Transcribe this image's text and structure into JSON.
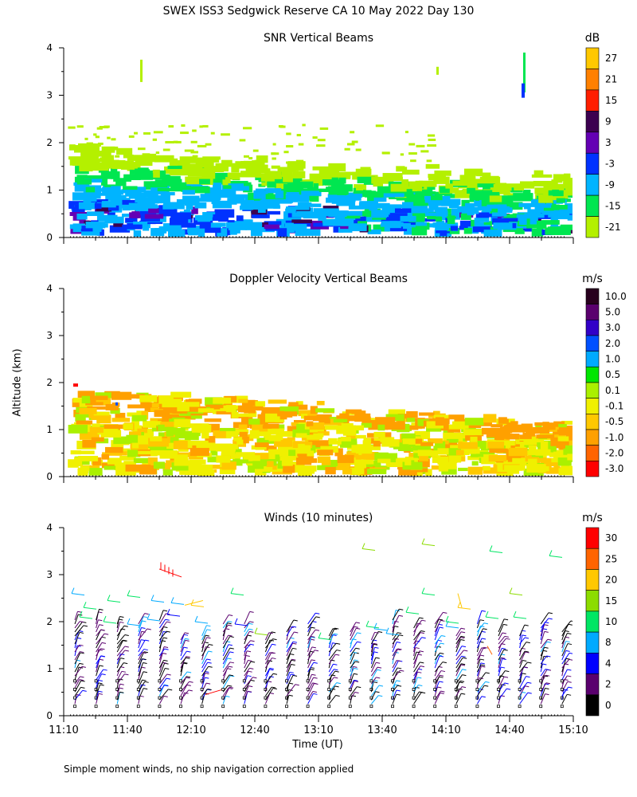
{
  "title": "SWEX ISS3 Sedgwick Reserve CA  10 May 2022 Day 130",
  "ylabel": "Altitude (km)",
  "xlabel": "Time (UT)",
  "footnote": "Simple moment winds, no ship navigation correction applied",
  "x_ticks": [
    "11:10",
    "11:40",
    "12:10",
    "12:40",
    "13:10",
    "13:40",
    "14:10",
    "14:40",
    "15:10"
  ],
  "chart_data": [
    {
      "type": "heatmap",
      "title": "SNR Vertical Beams",
      "units": "dB",
      "ylim": [
        0,
        4
      ],
      "y_ticks": [
        0,
        1,
        2,
        3,
        4
      ],
      "colorbar": [
        {
          "label": "27",
          "color": "#ffc800"
        },
        {
          "label": "21",
          "color": "#ff8000"
        },
        {
          "label": "15",
          "color": "#ff1e00"
        },
        {
          "label": "9",
          "color": "#3c0050"
        },
        {
          "label": "3",
          "color": "#6400b4"
        },
        {
          "label": "-3",
          "color": "#0032ff"
        },
        {
          "label": "-9",
          "color": "#00b4ff"
        },
        {
          "label": "-15",
          "color": "#00e650"
        },
        {
          "label": "-21",
          "color": "#b4f000"
        }
      ],
      "extra_colors": [
        "#ffe600"
      ]
    },
    {
      "type": "heatmap",
      "title": "Doppler Velocity Vertical Beams",
      "units": "m/s",
      "ylim": [
        0,
        4
      ],
      "y_ticks": [
        0,
        1,
        2,
        3,
        4
      ],
      "colorbar": [
        {
          "label": "10.0",
          "color": "#28001e"
        },
        {
          "label": "5.0",
          "color": "#5a006e"
        },
        {
          "label": "3.0",
          "color": "#3200c8"
        },
        {
          "label": "2.0",
          "color": "#0050ff"
        },
        {
          "label": "1.0",
          "color": "#00aaff"
        },
        {
          "label": "0.5",
          "color": "#00e600"
        },
        {
          "label": "0.1",
          "color": "#aaf000"
        },
        {
          "label": "-0.1",
          "color": "#f0f000"
        },
        {
          "label": "-0.5",
          "color": "#ffc800"
        },
        {
          "label": "-1.0",
          "color": "#ffa000"
        },
        {
          "label": "-2.0",
          "color": "#ff6400"
        },
        {
          "label": "-3.0",
          "color": "#ff0000"
        }
      ],
      "extra_colors": [
        "#ffff00"
      ]
    },
    {
      "type": "scatter",
      "title": "Winds (10 minutes)",
      "units": "m/s",
      "ylim": [
        0,
        4
      ],
      "y_ticks": [
        0,
        1,
        2,
        3,
        4
      ],
      "colorbar": [
        {
          "label": "30",
          "color": "#ff0000"
        },
        {
          "label": "25",
          "color": "#ff6400"
        },
        {
          "label": "20",
          "color": "#ffc800"
        },
        {
          "label": "15",
          "color": "#8cdc00"
        },
        {
          "label": "10",
          "color": "#00e664"
        },
        {
          "label": "8",
          "color": "#00aaff"
        },
        {
          "label": "4",
          "color": "#0000ff"
        },
        {
          "label": "2",
          "color": "#5a006e"
        },
        {
          "label": "0",
          "color": "#000000"
        }
      ],
      "extra_colors": [
        "#ff0000"
      ]
    }
  ]
}
